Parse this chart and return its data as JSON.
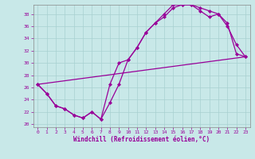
{
  "background_color": "#c8e8e8",
  "grid_color": "#a8d0d0",
  "line_color": "#990099",
  "xlabel": "Windchill (Refroidissement éolien,°C)",
  "xlim": [
    -0.5,
    23.5
  ],
  "ylim": [
    19.5,
    39.5
  ],
  "yticks": [
    20,
    22,
    24,
    26,
    28,
    30,
    32,
    34,
    36,
    38
  ],
  "xticks": [
    0,
    1,
    2,
    3,
    4,
    5,
    6,
    7,
    8,
    9,
    10,
    11,
    12,
    13,
    14,
    15,
    16,
    17,
    18,
    19,
    20,
    21,
    22,
    23
  ],
  "line1_x": [
    0,
    1,
    2,
    3,
    4,
    5,
    6,
    7,
    8,
    9,
    10,
    11,
    12,
    13,
    14,
    15,
    16,
    17,
    18,
    19,
    20,
    21,
    22,
    23
  ],
  "line1_y": [
    26.5,
    25.0,
    23.0,
    22.5,
    21.5,
    21.0,
    22.0,
    20.8,
    26.5,
    30.0,
    30.5,
    32.5,
    35.0,
    36.5,
    38.0,
    39.5,
    39.5,
    39.5,
    39.0,
    38.5,
    38.0,
    36.0,
    33.0,
    31.0
  ],
  "line2_x": [
    0,
    1,
    2,
    3,
    4,
    5,
    6,
    7,
    8,
    9,
    10,
    11,
    12,
    13,
    14,
    15,
    16,
    17,
    18,
    19,
    20,
    21,
    22,
    23
  ],
  "line2_y": [
    26.5,
    25.0,
    23.0,
    22.5,
    21.5,
    21.0,
    22.0,
    20.8,
    23.5,
    26.5,
    30.5,
    32.5,
    35.0,
    36.5,
    37.5,
    39.0,
    39.5,
    39.5,
    38.5,
    37.5,
    38.0,
    36.5,
    31.5,
    31.0
  ],
  "line3_x": [
    0,
    23
  ],
  "line3_y": [
    26.5,
    31.0
  ]
}
